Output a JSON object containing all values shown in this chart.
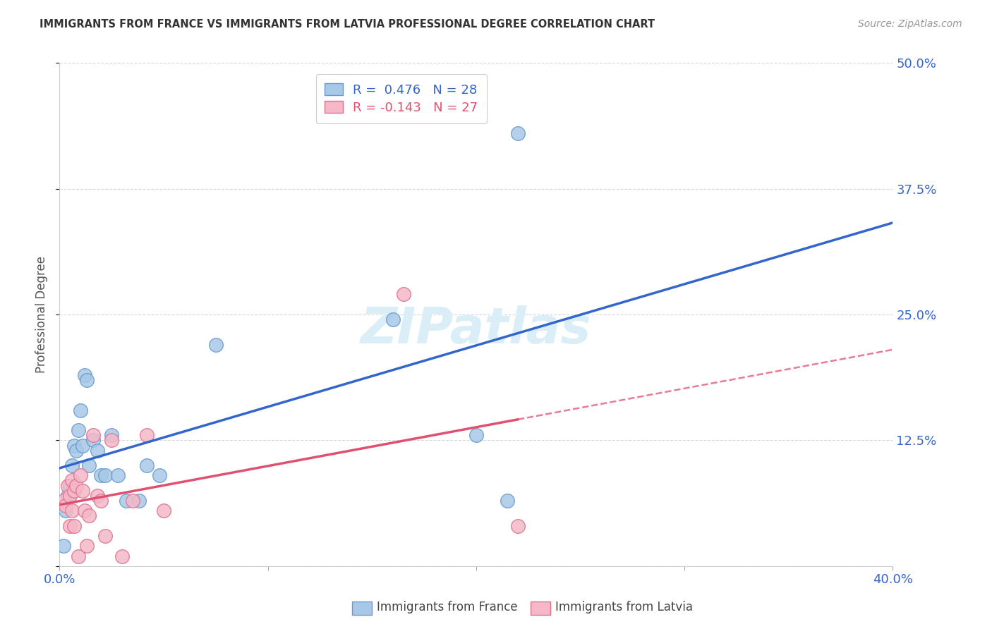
{
  "title": "IMMIGRANTS FROM FRANCE VS IMMIGRANTS FROM LATVIA PROFESSIONAL DEGREE CORRELATION CHART",
  "source": "Source: ZipAtlas.com",
  "ylabel": "Professional Degree",
  "xlim": [
    0.0,
    0.4
  ],
  "ylim": [
    0.0,
    0.5
  ],
  "xticks": [
    0.0,
    0.1,
    0.2,
    0.3,
    0.4
  ],
  "xticklabels_show": [
    "0.0%",
    "",
    "",
    "",
    "40.0%"
  ],
  "yticks": [
    0.0,
    0.125,
    0.25,
    0.375,
    0.5
  ],
  "yticklabels": [
    "",
    "12.5%",
    "25.0%",
    "37.5%",
    "50.0%"
  ],
  "france_color": "#a8c8e8",
  "france_edge": "#6699cc",
  "latvia_color": "#f4b8c8",
  "latvia_edge": "#e07090",
  "france_line_color": "#3366cc",
  "latvia_line_color": "#e05070",
  "france_R": 0.476,
  "france_N": 28,
  "latvia_R": -0.143,
  "latvia_N": 27,
  "legend_label_france": "Immigrants from France",
  "legend_label_latvia": "Immigrants from Latvia",
  "france_x": [
    0.002,
    0.003,
    0.004,
    0.005,
    0.006,
    0.007,
    0.008,
    0.009,
    0.01,
    0.011,
    0.012,
    0.013,
    0.014,
    0.016,
    0.018,
    0.02,
    0.022,
    0.025,
    0.028,
    0.032,
    0.038,
    0.042,
    0.048,
    0.075,
    0.16,
    0.2,
    0.215,
    0.22
  ],
  "france_y": [
    0.02,
    0.055,
    0.07,
    0.08,
    0.1,
    0.12,
    0.115,
    0.135,
    0.155,
    0.12,
    0.19,
    0.185,
    0.1,
    0.125,
    0.115,
    0.09,
    0.09,
    0.13,
    0.09,
    0.065,
    0.065,
    0.1,
    0.09,
    0.22,
    0.245,
    0.13,
    0.065,
    0.43
  ],
  "latvia_x": [
    0.002,
    0.003,
    0.004,
    0.005,
    0.005,
    0.006,
    0.006,
    0.007,
    0.007,
    0.008,
    0.009,
    0.01,
    0.011,
    0.012,
    0.013,
    0.014,
    0.016,
    0.018,
    0.02,
    0.022,
    0.025,
    0.03,
    0.035,
    0.042,
    0.05,
    0.165,
    0.22
  ],
  "latvia_y": [
    0.065,
    0.06,
    0.08,
    0.07,
    0.04,
    0.085,
    0.055,
    0.075,
    0.04,
    0.08,
    0.01,
    0.09,
    0.075,
    0.055,
    0.02,
    0.05,
    0.13,
    0.07,
    0.065,
    0.03,
    0.125,
    0.01,
    0.065,
    0.13,
    0.055,
    0.27,
    0.04
  ],
  "background_color": "#ffffff",
  "grid_color": "#cccccc",
  "watermark_text": "ZIPatlas",
  "watermark_color": "#daeef8"
}
